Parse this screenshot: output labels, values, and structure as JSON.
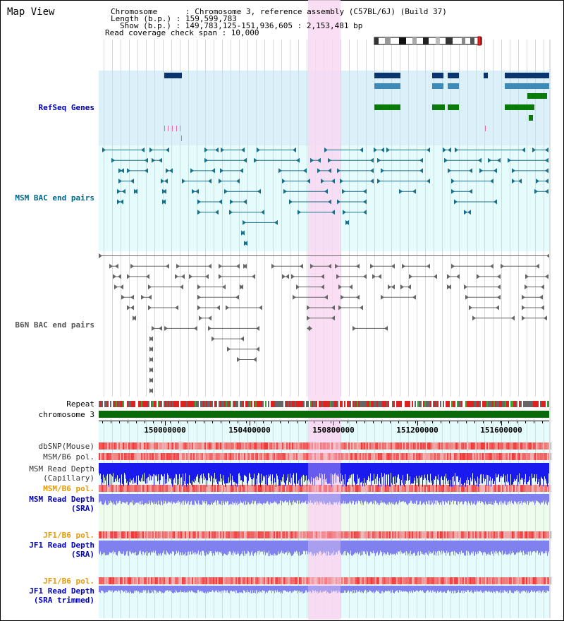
{
  "window": {
    "title": "Map View"
  },
  "info": {
    "chromosome": "Chromosome      : Chromosome 3, reference assembly (C57BL/6J) (Build 37)",
    "length": "Length (b.p.) : 159,599,783",
    "show": "Show (b.p.) : 149,783,125-151,936,605 : 2,153,481 bp",
    "coverage": "Read coverage check span : 10,000"
  },
  "tracks": {
    "refseq": "RefSeq Genes",
    "msm_bac": "MSM BAC end pairs",
    "b6n_bac": "B6N BAC end pairs",
    "repeat": "Repeat",
    "chromosome": "chromosome 3",
    "dbsnp": "dbSNP(Mouse)",
    "msm_b6_pol_1": "MSM/B6 pol.",
    "msm_read_depth_cap_1": "MSM Read Depth",
    "msm_read_depth_cap_2": "(Capillary)",
    "msm_b6_pol_2": "MSM/B6 pol.",
    "msm_read_depth_sra_1": "MSM Read Depth",
    "msm_read_depth_sra_2": "(SRA)",
    "jf1_b6_pol_1": "JF1/B6 pol.",
    "jf1_read_depth_sra_1": "JF1 Read Depth",
    "jf1_read_depth_sra_2": "(SRA)",
    "jf1_b6_pol_2": "JF1/B6 pol.",
    "jf1_read_depth_trim_1": "JF1 Read Depth",
    "jf1_read_depth_trim_2": "(SRA trimmed)"
  },
  "axis": {
    "ticks": [
      "150000000",
      "150400000",
      "150800000",
      "151200000",
      "151600000"
    ]
  },
  "colors": {
    "refseq_bg": "#dcf0fa",
    "msm_bg": "#e6fcfc",
    "b6n_bg": "#ffffff",
    "highlight": "#f8d8f2",
    "gene_dark": "#0a3570",
    "gene_light": "#3d8ab8",
    "gene_green": "#0a7a0a",
    "bac_msm": "#1a6f8a",
    "bac_b6n": "#666666",
    "chromosome_bar": "#0a6a0a",
    "snp_red": "#ee4444",
    "depth_cap": "#1a1aee",
    "depth_sra": "#8080ee"
  }
}
